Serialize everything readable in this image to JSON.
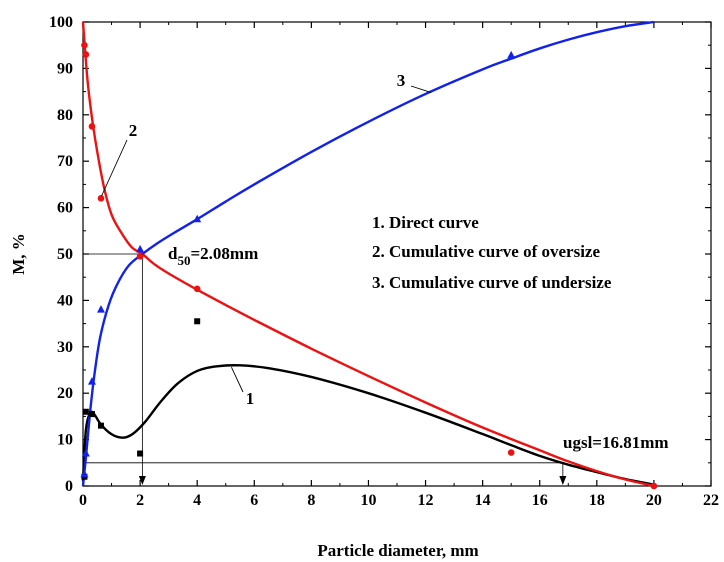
{
  "chart_data": {
    "type": "line",
    "xlabel": "Particle diameter, mm",
    "ylabel": "M, %",
    "xlim": [
      0,
      22
    ],
    "ylim": [
      0,
      100
    ],
    "xticks": [
      0,
      2,
      4,
      6,
      8,
      10,
      12,
      14,
      16,
      18,
      20,
      22
    ],
    "yticks": [
      0,
      10,
      20,
      30,
      40,
      50,
      60,
      70,
      80,
      90,
      100
    ],
    "grid": false,
    "legend_position": "center-right",
    "legend": [
      "1. Direct curve",
      "2. Cumulative curve of oversize",
      "3. Cumulative curve of undersize"
    ],
    "series": [
      {
        "label": "1",
        "color": "#000000",
        "marker": "square",
        "points": [
          [
            0.05,
            2
          ],
          [
            0.1,
            16
          ],
          [
            0.315,
            15.5
          ],
          [
            0.63,
            13
          ],
          [
            2,
            7
          ],
          [
            4,
            35.5
          ]
        ],
        "curve": [
          [
            0.0,
            1.0
          ],
          [
            0.1,
            12.0
          ],
          [
            0.25,
            15.8
          ],
          [
            0.4,
            15.4
          ],
          [
            0.6,
            13.5
          ],
          [
            0.9,
            11.6
          ],
          [
            1.2,
            10.6
          ],
          [
            1.5,
            10.5
          ],
          [
            1.8,
            11.5
          ],
          [
            2.2,
            14.0
          ],
          [
            2.7,
            18.0
          ],
          [
            3.3,
            22.0
          ],
          [
            4.0,
            24.8
          ],
          [
            4.7,
            25.8
          ],
          [
            5.5,
            26.0
          ],
          [
            6.5,
            25.4
          ],
          [
            8,
            23.5
          ],
          [
            10,
            20.0
          ],
          [
            12,
            15.8
          ],
          [
            14,
            11.2
          ],
          [
            15,
            8.8
          ],
          [
            16,
            6.5
          ],
          [
            17,
            4.6
          ],
          [
            18,
            3.0
          ],
          [
            19,
            1.5
          ],
          [
            20,
            0.3
          ]
        ]
      },
      {
        "label": "2",
        "color": "#ee1111",
        "marker": "circle",
        "points": [
          [
            0.05,
            95
          ],
          [
            0.1,
            93
          ],
          [
            0.315,
            77.5
          ],
          [
            0.63,
            62
          ],
          [
            2,
            49.5
          ],
          [
            4,
            42.5
          ],
          [
            15,
            7.2
          ],
          [
            20,
            0
          ]
        ],
        "curve": [
          [
            0.0,
            100
          ],
          [
            0.15,
            88
          ],
          [
            0.3,
            80
          ],
          [
            0.5,
            72
          ],
          [
            0.75,
            64
          ],
          [
            1.0,
            58.5
          ],
          [
            1.3,
            55
          ],
          [
            1.7,
            51.5
          ],
          [
            2.08,
            50.0
          ],
          [
            2.5,
            47.8
          ],
          [
            3.0,
            45.8
          ],
          [
            4,
            42.3
          ],
          [
            5,
            39.0
          ],
          [
            6,
            35.8
          ],
          [
            8,
            29.6
          ],
          [
            10,
            23.7
          ],
          [
            12,
            18.0
          ],
          [
            14,
            12.6
          ],
          [
            16,
            7.7
          ],
          [
            17,
            5.3
          ],
          [
            18,
            3.2
          ],
          [
            19,
            1.4
          ],
          [
            20,
            0
          ]
        ]
      },
      {
        "label": "3",
        "color": "#1122ee",
        "marker": "triangle",
        "points": [
          [
            0.05,
            2.5
          ],
          [
            0.1,
            7
          ],
          [
            0.315,
            22.5
          ],
          [
            0.63,
            38
          ],
          [
            2,
            51
          ],
          [
            4,
            57.5
          ],
          [
            15,
            92.8
          ]
        ],
        "curve": [
          [
            0.0,
            0
          ],
          [
            0.1,
            6
          ],
          [
            0.25,
            16
          ],
          [
            0.4,
            24
          ],
          [
            0.6,
            32
          ],
          [
            0.9,
            39
          ],
          [
            1.2,
            43.5
          ],
          [
            1.6,
            47.5
          ],
          [
            2.08,
            50.0
          ],
          [
            2.6,
            52.3
          ],
          [
            3.2,
            54.6
          ],
          [
            4,
            57.5
          ],
          [
            5,
            61.3
          ],
          [
            6,
            65.0
          ],
          [
            8,
            72.0
          ],
          [
            10,
            78.5
          ],
          [
            12,
            84.5
          ],
          [
            14,
            89.8
          ],
          [
            15,
            92.1
          ],
          [
            16,
            94.3
          ],
          [
            17,
            96.2
          ],
          [
            18,
            97.8
          ],
          [
            19,
            99.1
          ],
          [
            20,
            100
          ]
        ]
      }
    ],
    "annotations": {
      "d50": {
        "label_main": "d",
        "label_sub": "50",
        "label_rest": "=2.08mm",
        "x": 2.08,
        "y": 50
      },
      "ugsl": {
        "label": "ugsl=16.81mm",
        "x": 16.81,
        "y": 5
      }
    }
  }
}
